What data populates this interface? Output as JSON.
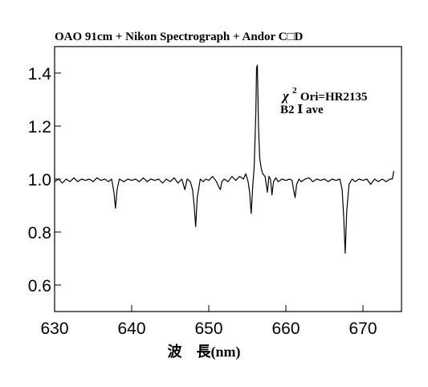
{
  "chart_data": {
    "type": "line",
    "title": "OAO 91cm + Nikon Spectrograph + Andor C□D",
    "xlabel": "波　長(nm)",
    "ylabel": "",
    "xlim": [
      630,
      675
    ],
    "ylim": [
      0.5,
      1.5
    ],
    "xticks": [
      630,
      640,
      650,
      660,
      670
    ],
    "yticks": [
      0.6,
      0.8,
      1.0,
      1.2,
      1.4
    ],
    "xtick_labels": [
      "630",
      "640",
      "650",
      "660",
      "670"
    ],
    "ytick_labels": [
      "0.6",
      "0.8",
      "1.0",
      "1.2",
      "1.4"
    ],
    "grid": false,
    "annotations": [
      {
        "chi": "χ",
        "sup": "2",
        "rest": "Ori=HR2135"
      },
      {
        "text": "B2 Ⅰ ave"
      }
    ],
    "series": [
      {
        "values": "spectrum",
        "x": [
          630.0,
          630.5,
          631.0,
          631.5,
          632.0,
          632.5,
          633.0,
          633.5,
          634.0,
          634.5,
          635.0,
          635.5,
          636.0,
          636.5,
          637.0,
          637.4,
          637.7,
          637.9,
          638.1,
          638.4,
          639.0,
          639.5,
          640.0,
          640.5,
          641.0,
          641.5,
          642.0,
          642.5,
          643.0,
          643.5,
          644.0,
          644.5,
          645.0,
          645.5,
          646.0,
          646.5,
          646.9,
          647.2,
          647.6,
          647.9,
          648.1,
          648.3,
          648.5,
          648.9,
          649.3,
          649.6,
          650.0,
          650.5,
          651.0,
          651.3,
          651.5,
          651.7,
          652.0,
          652.5,
          653.0,
          653.5,
          654.0,
          654.5,
          654.8,
          655.1,
          655.3,
          655.5,
          655.7,
          655.9,
          656.1,
          656.2,
          656.3,
          656.45,
          656.6,
          656.8,
          657.0,
          657.3,
          657.6,
          657.8,
          658.0,
          658.2,
          658.4,
          658.7,
          659.0,
          659.5,
          660.0,
          660.5,
          660.8,
          661.0,
          661.2,
          661.4,
          661.7,
          662.0,
          662.5,
          663.0,
          663.5,
          664.0,
          664.5,
          665.0,
          665.5,
          666.0,
          666.5,
          667.0,
          667.3,
          667.5,
          667.7,
          667.9,
          668.2,
          668.6,
          669.0,
          669.5,
          670.0,
          670.5,
          671.0,
          671.5,
          672.0,
          672.5,
          673.0,
          673.5,
          673.8,
          674.0
        ],
        "y": [
          0.99,
          1.0,
          0.985,
          1.0,
          0.99,
          1.005,
          0.99,
          1.0,
          0.995,
          1.0,
          0.99,
          1.005,
          0.995,
          1.0,
          0.99,
          1.0,
          0.95,
          0.89,
          0.96,
          1.0,
          0.99,
          1.0,
          0.995,
          1.0,
          0.99,
          1.005,
          0.99,
          1.0,
          0.995,
          1.0,
          0.985,
          1.0,
          0.99,
          1.005,
          0.985,
          1.0,
          0.96,
          1.0,
          0.99,
          0.96,
          0.9,
          0.82,
          0.93,
          1.0,
          0.99,
          1.0,
          0.995,
          1.01,
          0.99,
          0.97,
          0.96,
          0.99,
          1.0,
          0.99,
          1.01,
          0.995,
          1.01,
          1.0,
          1.02,
          0.99,
          0.95,
          0.87,
          0.97,
          1.05,
          1.25,
          1.42,
          1.43,
          1.2,
          1.08,
          1.04,
          1.02,
          1.01,
          0.95,
          1.01,
          1.0,
          0.94,
          0.99,
          1.005,
          0.99,
          1.0,
          0.995,
          1.0,
          0.995,
          0.96,
          0.93,
          0.98,
          1.0,
          0.99,
          1.0,
          1.005,
          0.99,
          1.0,
          0.995,
          1.0,
          0.99,
          1.0,
          0.995,
          1.0,
          0.96,
          0.86,
          0.72,
          0.88,
          0.98,
          1.0,
          0.99,
          1.0,
          0.995,
          1.0,
          0.98,
          1.0,
          0.99,
          1.0,
          0.99,
          1.0,
          1.0,
          1.03
        ]
      }
    ]
  }
}
